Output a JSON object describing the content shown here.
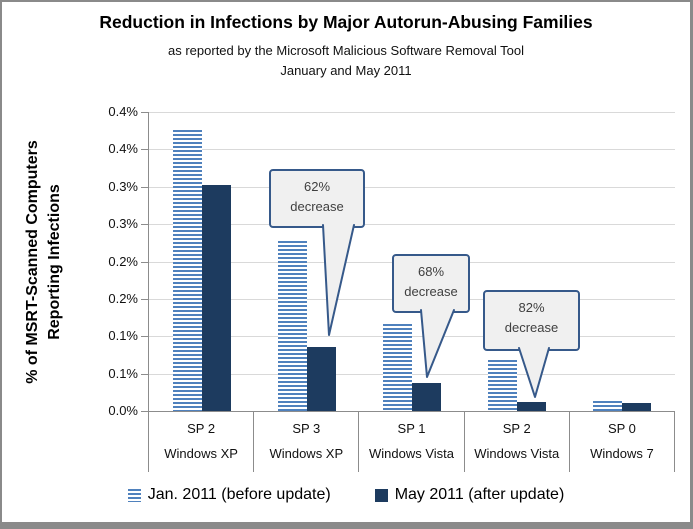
{
  "chart_data": {
    "type": "bar",
    "title": "Reduction in Infections by Major Autorun-Abusing Families",
    "subtitle": "as reported by the Microsoft Malicious Software Removal Tool",
    "subtitle2": "January and May 2011",
    "ylabel": "% of MSRT-Scanned Computers Reporting Infections",
    "ylabel_lines": [
      "% of MSRT-Scanned Computers",
      "Reporting Infections"
    ],
    "values_unit": "%",
    "ylim": [
      0,
      0.4
    ],
    "ytick_interval": 0.05,
    "ytick_labels": [
      "0.4%",
      "0.4%",
      "0.3%",
      "0.3%",
      "0.2%",
      "0.2%",
      "0.1%",
      "0.1%",
      "0.0%"
    ],
    "grid": true,
    "legend_position": "bottom",
    "categories": [
      {
        "sp": "SP 2",
        "os": "Windows XP"
      },
      {
        "sp": "SP 3",
        "os": "Windows XP"
      },
      {
        "sp": "SP 1",
        "os": "Windows Vista"
      },
      {
        "sp": "SP 2",
        "os": "Windows Vista"
      },
      {
        "sp": "SP 0",
        "os": "Windows 7"
      }
    ],
    "series": [
      {
        "name": "Jan. 2011 (before update)",
        "style": "striped",
        "color": "#4f81bd",
        "values": [
          0.376,
          0.227,
          0.117,
          0.068,
          0.014
        ]
      },
      {
        "name": "May 2011 (after update)",
        "style": "solid",
        "color": "#1d3b5f",
        "values": [
          0.302,
          0.086,
          0.037,
          0.012,
          0.011
        ]
      }
    ],
    "annotations": [
      {
        "label": "62% decrease",
        "category": "SP 3 Windows XP",
        "points_to": "May 2011 bar"
      },
      {
        "label": "68% decrease",
        "category": "SP 1 Windows Vista",
        "points_to": "May 2011 bar"
      },
      {
        "label": "82% decrease",
        "category": "SP 2 Windows Vista",
        "points_to": "May 2011 bar"
      }
    ]
  },
  "colors": {
    "before_series_blue": "#4f81bd",
    "after_series_navy": "#1d3b5f",
    "callout_border": "#36598a",
    "callout_fill": "#f0f0f0",
    "gridline": "#d9d9d9",
    "axis_line": "#8c8c8c",
    "frame_border": "#8a8a8a",
    "background": "#ffffff"
  }
}
